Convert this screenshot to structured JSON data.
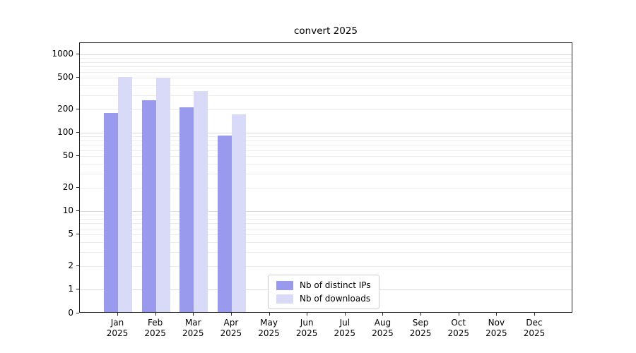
{
  "title": "convert 2025",
  "chart_data": {
    "type": "bar",
    "title": "convert 2025",
    "year": "2025",
    "categories": [
      "Jan",
      "Feb",
      "Mar",
      "Apr",
      "May",
      "Jun",
      "Jul",
      "Aug",
      "Sep",
      "Oct",
      "Nov",
      "Dec"
    ],
    "series": [
      {
        "name": "Nb of distinct IPs",
        "color": "#9999ee",
        "values": [
          180,
          260,
          210,
          92,
          0,
          0,
          0,
          0,
          0,
          0,
          0,
          0
        ]
      },
      {
        "name": "Nb of downloads",
        "color": "#d9d9f8",
        "values": [
          510,
          500,
          340,
          170,
          0,
          0,
          0,
          0,
          0,
          0,
          0,
          0
        ]
      }
    ],
    "yscale": "symlog",
    "yticks": [
      0,
      1,
      2,
      5,
      10,
      20,
      50,
      100,
      200,
      500,
      1000
    ],
    "ylim": [
      0,
      1400
    ],
    "grid": true,
    "legend_position": "lower-center-inside"
  },
  "colors": {
    "grid_minor": "#ececec",
    "grid_major": "#dcdcdc",
    "axis": "#262626",
    "background": "#ffffff"
  }
}
